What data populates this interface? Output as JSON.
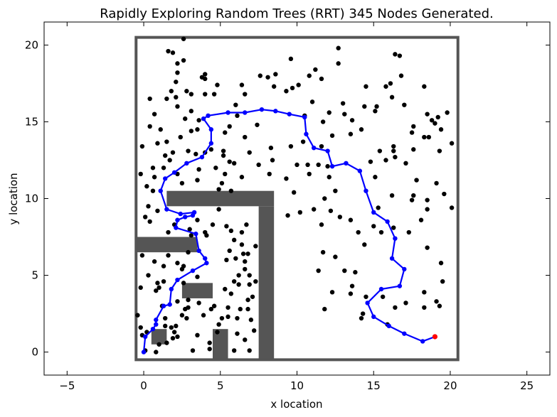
{
  "chart_data": {
    "type": "scatter",
    "title": "Rapidly Exploring Random Trees (RRT) 345 Nodes Generated.",
    "xlabel": "x location",
    "ylabel": "y location",
    "xlim": [
      -6.5,
      26.5
    ],
    "ylim": [
      -1.5,
      21.5
    ],
    "x_ticks": [
      -5,
      0,
      5,
      10,
      15,
      20,
      25
    ],
    "y_ticks": [
      0,
      5,
      10,
      15,
      20
    ],
    "x_tick_labels": [
      "−5",
      "0",
      "5",
      "10",
      "15",
      "20",
      "25"
    ],
    "y_tick_labels": [
      "0",
      "5",
      "10",
      "15",
      "20"
    ],
    "grid": false,
    "colors": {
      "nodes": "#000000",
      "path": "#0000ff",
      "goal": "#ff0000",
      "obstacles": "#555555",
      "boundary": "#555555"
    },
    "boundary": {
      "x0": -0.5,
      "y0": -0.5,
      "x1": 20.5,
      "y1": 20.5
    },
    "obstacles": [
      {
        "x0": 1.5,
        "y0": 9.5,
        "x1": 8.5,
        "y1": 10.5
      },
      {
        "x0": 7.5,
        "y0": -0.5,
        "x1": 8.5,
        "y1": 9.5
      },
      {
        "x0": -0.5,
        "y0": 6.5,
        "x1": 3.5,
        "y1": 7.5
      },
      {
        "x0": 2.5,
        "y0": 3.5,
        "x1": 4.5,
        "y1": 4.5
      },
      {
        "x0": 0.5,
        "y0": 0.5,
        "x1": 1.5,
        "y1": 1.5
      },
      {
        "x0": 4.5,
        "y0": -0.5,
        "x1": 5.5,
        "y1": 1.5
      }
    ],
    "path": [
      [
        19.0,
        1.0
      ],
      [
        18.2,
        0.7
      ],
      [
        17.0,
        1.2
      ],
      [
        16.0,
        1.7
      ],
      [
        15.0,
        2.3
      ],
      [
        14.6,
        3.2
      ],
      [
        15.5,
        4.1
      ],
      [
        16.7,
        4.3
      ],
      [
        17.0,
        5.4
      ],
      [
        16.2,
        6.1
      ],
      [
        16.4,
        7.4
      ],
      [
        15.9,
        8.5
      ],
      [
        15.0,
        9.1
      ],
      [
        14.5,
        10.5
      ],
      [
        14.1,
        11.8
      ],
      [
        13.2,
        12.3
      ],
      [
        12.3,
        12.1
      ],
      [
        12.0,
        13.1
      ],
      [
        11.1,
        13.3
      ],
      [
        10.6,
        14.2
      ],
      [
        10.5,
        15.3
      ],
      [
        9.5,
        15.5
      ],
      [
        8.6,
        15.7
      ],
      [
        7.7,
        15.8
      ],
      [
        6.6,
        15.6
      ],
      [
        5.5,
        15.6
      ],
      [
        4.2,
        15.4
      ],
      [
        3.9,
        15.2
      ],
      [
        4.4,
        14.5
      ],
      [
        4.4,
        13.6
      ],
      [
        3.8,
        12.7
      ],
      [
        2.8,
        12.3
      ],
      [
        2.0,
        11.7
      ],
      [
        1.4,
        11.3
      ],
      [
        1.1,
        10.5
      ],
      [
        1.5,
        9.3
      ],
      [
        2.4,
        9.0
      ],
      [
        3.3,
        9.1
      ],
      [
        3.2,
        8.9
      ],
      [
        2.7,
        8.8
      ],
      [
        2.2,
        8.6
      ],
      [
        2.1,
        8.1
      ],
      [
        3.4,
        7.7
      ],
      [
        3.6,
        6.6
      ],
      [
        4.0,
        6.1
      ],
      [
        4.1,
        5.8
      ],
      [
        3.2,
        5.3
      ],
      [
        2.2,
        4.7
      ],
      [
        1.8,
        4.1
      ],
      [
        1.7,
        3.1
      ],
      [
        1.3,
        3.0
      ],
      [
        0.8,
        2.1
      ],
      [
        0.8,
        1.8
      ],
      [
        0.6,
        1.5
      ],
      [
        0.1,
        1.0
      ],
      [
        0.0,
        0.0
      ]
    ],
    "points": [
      [
        0.4,
        16.5
      ],
      [
        1.5,
        16.5
      ],
      [
        2.1,
        16.6
      ],
      [
        2.1,
        17.6
      ],
      [
        1.8,
        17.0
      ],
      [
        1.6,
        19.6
      ],
      [
        1.9,
        19.5
      ],
      [
        2.2,
        18.8
      ],
      [
        2.2,
        18.2
      ],
      [
        2.2,
        16.0
      ],
      [
        2.6,
        20.4
      ],
      [
        2.6,
        19.0
      ],
      [
        2.8,
        17.0
      ],
      [
        2.7,
        15.2
      ],
      [
        3.1,
        16.8
      ],
      [
        3.1,
        15.7
      ],
      [
        3.6,
        15.1
      ],
      [
        3.8,
        17.9
      ],
      [
        4.0,
        17.8
      ],
      [
        4.0,
        18.1
      ],
      [
        4.0,
        16.8
      ],
      [
        3.5,
        14.5
      ],
      [
        3.4,
        12.9
      ],
      [
        3.1,
        14.4
      ],
      [
        4.0,
        13.0
      ],
      [
        4.4,
        13.2
      ],
      [
        4.7,
        12.0
      ],
      [
        5.2,
        12.8
      ],
      [
        5.3,
        14.3
      ],
      [
        5.6,
        12.4
      ],
      [
        4.6,
        16.8
      ],
      [
        4.8,
        17.4
      ],
      [
        5.6,
        14.7
      ],
      [
        6.0,
        16.1
      ],
      [
        6.1,
        15.4
      ],
      [
        6.4,
        17.4
      ],
      [
        6.6,
        16.8
      ],
      [
        6.6,
        14.0
      ],
      [
        6.9,
        13.0
      ],
      [
        7.4,
        14.8
      ],
      [
        7.6,
        18.0
      ],
      [
        8.1,
        17.9
      ],
      [
        8.5,
        17.3
      ],
      [
        8.6,
        18.1
      ],
      [
        9.3,
        17.0
      ],
      [
        9.6,
        19.1
      ],
      [
        9.7,
        17.2
      ],
      [
        10.1,
        17.4
      ],
      [
        10.5,
        15.4
      ],
      [
        10.8,
        18.0
      ],
      [
        11.0,
        16.3
      ],
      [
        11.2,
        18.4
      ],
      [
        11.6,
        17.8
      ],
      [
        11.7,
        15.0
      ],
      [
        12.1,
        15.6
      ],
      [
        12.3,
        14.1
      ],
      [
        12.7,
        19.8
      ],
      [
        12.7,
        18.8
      ],
      [
        13.0,
        16.2
      ],
      [
        13.1,
        15.5
      ],
      [
        13.5,
        14.2
      ],
      [
        13.6,
        15.1
      ],
      [
        14.2,
        14.5
      ],
      [
        14.4,
        16.0
      ],
      [
        14.5,
        17.3
      ],
      [
        15.1,
        15.7
      ],
      [
        15.2,
        16.0
      ],
      [
        15.8,
        17.3
      ],
      [
        16.1,
        17.5
      ],
      [
        16.2,
        16.6
      ],
      [
        16.4,
        19.4
      ],
      [
        16.7,
        19.3
      ],
      [
        16.8,
        18.0
      ],
      [
        17.0,
        16.1
      ],
      [
        17.6,
        14.7
      ],
      [
        17.6,
        13.2
      ],
      [
        17.5,
        14.3
      ],
      [
        18.3,
        17.3
      ],
      [
        18.5,
        15.5
      ],
      [
        18.8,
        15.1
      ],
      [
        18.3,
        14.0
      ],
      [
        19.2,
        15.3
      ],
      [
        19.0,
        14.9
      ],
      [
        19.8,
        15.6
      ],
      [
        20.1,
        13.6
      ],
      [
        14.8,
        12.4
      ],
      [
        15.1,
        11.4
      ],
      [
        15.4,
        13.1
      ],
      [
        15.8,
        12.5
      ],
      [
        16.3,
        13.4
      ],
      [
        16.3,
        13.1
      ],
      [
        16.4,
        12.7
      ],
      [
        17.1,
        12.3
      ],
      [
        17.8,
        11.2
      ],
      [
        18.6,
        14.0
      ],
      [
        19.1,
        11.0
      ],
      [
        19.3,
        13.1
      ],
      [
        19.4,
        14.5
      ],
      [
        18.5,
        9.9
      ],
      [
        18.5,
        9.3
      ],
      [
        19.6,
        10.3
      ],
      [
        20.1,
        9.4
      ],
      [
        17.6,
        10.2
      ],
      [
        16.3,
        8.1
      ],
      [
        16.2,
        10.2
      ],
      [
        15.3,
        9.4
      ],
      [
        15.0,
        8.2
      ],
      [
        15.5,
        7.8
      ],
      [
        17.3,
        7.8
      ],
      [
        17.5,
        9.9
      ],
      [
        18.1,
        8.6
      ],
      [
        18.5,
        6.8
      ],
      [
        19.4,
        5.8
      ],
      [
        19.5,
        4.6
      ],
      [
        18.3,
        3.9
      ],
      [
        19.1,
        3.3
      ],
      [
        19.3,
        3.0
      ],
      [
        18.3,
        2.9
      ],
      [
        17.1,
        3.2
      ],
      [
        16.4,
        2.9
      ],
      [
        15.9,
        1.8
      ],
      [
        15.6,
        3.6
      ],
      [
        14.2,
        2.2
      ],
      [
        14.3,
        2.5
      ],
      [
        14.5,
        3.6
      ],
      [
        13.6,
        4.3
      ],
      [
        13.8,
        5.2
      ],
      [
        14.0,
        7.8
      ],
      [
        14.4,
        7.0
      ],
      [
        13.5,
        8.6
      ],
      [
        12.8,
        8.8
      ],
      [
        12.5,
        10.5
      ],
      [
        12.0,
        12.1
      ],
      [
        12.1,
        11.4
      ],
      [
        12.2,
        9.2
      ],
      [
        11.4,
        12.2
      ],
      [
        11.6,
        13.4
      ],
      [
        10.4,
        13.7
      ],
      [
        10.7,
        12.2
      ],
      [
        10.8,
        11.6
      ],
      [
        11.1,
        9.3
      ],
      [
        11.8,
        10.0
      ],
      [
        11.6,
        8.3
      ],
      [
        11.7,
        6.5
      ],
      [
        11.4,
        5.3
      ],
      [
        12.5,
        6.2
      ],
      [
        11.8,
        2.8
      ],
      [
        12.3,
        3.9
      ],
      [
        13.1,
        5.3
      ],
      [
        13.5,
        3.8
      ],
      [
        9.8,
        10.4
      ],
      [
        9.3,
        11.3
      ],
      [
        9.4,
        8.9
      ],
      [
        10.2,
        9.1
      ],
      [
        10.0,
        12.2
      ],
      [
        9.6,
        13.4
      ],
      [
        8.4,
        12.5
      ],
      [
        8.2,
        11.6
      ],
      [
        8.3,
        13.3
      ],
      [
        7.5,
        12.2
      ],
      [
        6.4,
        11.4
      ],
      [
        5.9,
        12.3
      ],
      [
        5.2,
        13.1
      ],
      [
        5.3,
        11.6
      ],
      [
        5.1,
        11.0
      ],
      [
        4.9,
        10.6
      ],
      [
        5.7,
        10.5
      ],
      [
        3.6,
        11.9
      ],
      [
        3.5,
        11.2
      ],
      [
        2.5,
        11.0
      ],
      [
        2.2,
        11.6
      ],
      [
        1.7,
        12.5
      ],
      [
        1.4,
        12.8
      ],
      [
        1.3,
        12.0
      ],
      [
        0.7,
        11.4
      ],
      [
        0.6,
        12.0
      ],
      [
        0.6,
        10.5
      ],
      [
        0.9,
        9.2
      ],
      [
        0.3,
        9.5
      ],
      [
        0.2,
        10.8
      ],
      [
        -0.2,
        11.6
      ],
      [
        -0.1,
        13.4
      ],
      [
        0.9,
        13.6
      ],
      [
        1.1,
        14.5
      ],
      [
        0.4,
        14.7
      ],
      [
        0.7,
        15.5
      ],
      [
        1.5,
        13.7
      ],
      [
        1.9,
        13.0
      ],
      [
        2.4,
        14.0
      ],
      [
        2.9,
        13.1
      ],
      [
        -0.1,
        6.3
      ],
      [
        0.1,
        8.8
      ],
      [
        0.4,
        8.5
      ],
      [
        -0.2,
        4.2
      ],
      [
        -0.4,
        2.4
      ],
      [
        0.3,
        5.0
      ],
      [
        0.8,
        4.0
      ],
      [
        0.9,
        4.5
      ],
      [
        0.7,
        5.9
      ],
      [
        1.0,
        4.2
      ],
      [
        1.2,
        3.0
      ],
      [
        1.3,
        5.6
      ],
      [
        1.3,
        4.6
      ],
      [
        1.4,
        2.2
      ],
      [
        1.6,
        7.8
      ],
      [
        1.6,
        6.3
      ],
      [
        2.0,
        8.3
      ],
      [
        2.2,
        5.8
      ],
      [
        2.2,
        3.3
      ],
      [
        2.5,
        5.4
      ],
      [
        2.6,
        5.6
      ],
      [
        2.6,
        4.5
      ],
      [
        2.5,
        2.4
      ],
      [
        2.8,
        2.2
      ],
      [
        2.9,
        3.4
      ],
      [
        2.9,
        6.5
      ],
      [
        3.1,
        7.6
      ],
      [
        3.5,
        4.9
      ],
      [
        3.6,
        3.2
      ],
      [
        3.9,
        2.4
      ],
      [
        3.0,
        8.0
      ],
      [
        3.5,
        8.6
      ],
      [
        4.0,
        7.8
      ],
      [
        4.1,
        7.6
      ],
      [
        4.5,
        8.3
      ],
      [
        4.9,
        9.3
      ],
      [
        5.4,
        8.2
      ],
      [
        5.7,
        7.9
      ],
      [
        5.9,
        7.3
      ],
      [
        6.4,
        7.8
      ],
      [
        6.7,
        8.3
      ],
      [
        6.4,
        7.0
      ],
      [
        5.6,
        6.6
      ],
      [
        5.4,
        6.0
      ],
      [
        6.0,
        6.1
      ],
      [
        6.6,
        5.9
      ],
      [
        6.5,
        6.4
      ],
      [
        6.8,
        6.4
      ],
      [
        7.3,
        6.9
      ],
      [
        6.6,
        5.4
      ],
      [
        6.2,
        5.0
      ],
      [
        6.9,
        5.0
      ],
      [
        6.9,
        4.4
      ],
      [
        5.9,
        4.6
      ],
      [
        5.3,
        4.1
      ],
      [
        5.7,
        3.8
      ],
      [
        6.2,
        4.4
      ],
      [
        7.3,
        4.6
      ],
      [
        7.1,
        3.6
      ],
      [
        6.8,
        3.4
      ],
      [
        6.8,
        2.8
      ],
      [
        6.3,
        2.8
      ],
      [
        6.1,
        2.2
      ],
      [
        5.5,
        2.9
      ],
      [
        4.6,
        3.0
      ],
      [
        4.4,
        2.8
      ],
      [
        4.8,
        1.3
      ],
      [
        4.3,
        0.6
      ],
      [
        3.5,
        1.1
      ],
      [
        2.9,
        2.9
      ],
      [
        2.7,
        2.8
      ],
      [
        2.1,
        1.7
      ],
      [
        1.8,
        1.6
      ],
      [
        1.4,
        1.7
      ],
      [
        2.0,
        1.3
      ],
      [
        2.2,
        1.0
      ],
      [
        1.9,
        0.9
      ],
      [
        1.0,
        0.5
      ],
      [
        0.8,
        0.0
      ],
      [
        1.5,
        0.6
      ],
      [
        -0.2,
        1.6
      ],
      [
        -0.1,
        1.1
      ],
      [
        0.1,
        0.1
      ],
      [
        0.2,
        1.3
      ],
      [
        3.2,
        0.1
      ],
      [
        4.3,
        0.2
      ],
      [
        5.9,
        0.1
      ],
      [
        6.6,
        0.8
      ],
      [
        6.9,
        0.1
      ],
      [
        6.1,
        1.2
      ],
      [
        7.2,
        1.4
      ],
      [
        7.0,
        2.1
      ],
      [
        5.5,
        2.3
      ],
      [
        4.9,
        1.8
      ],
      [
        5.1,
        2.2
      ]
    ],
    "goal": [
      19.0,
      1.0
    ]
  }
}
